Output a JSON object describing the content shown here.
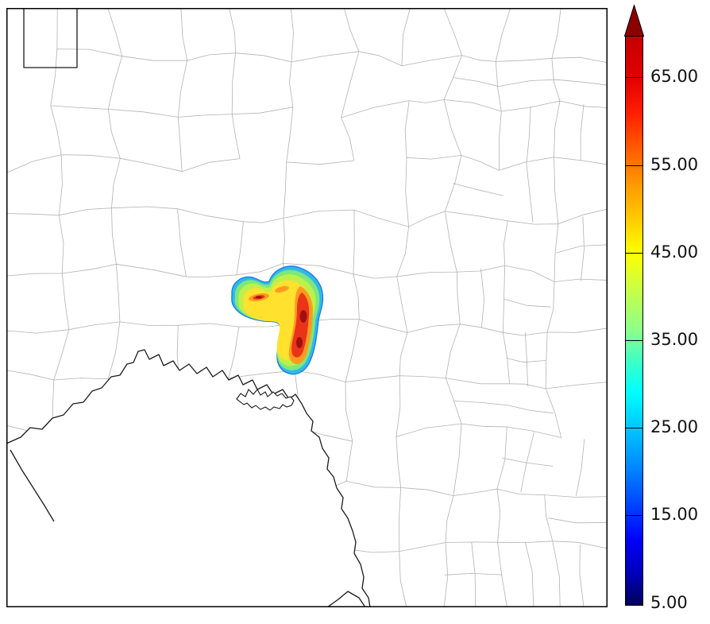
{
  "chart_data": {
    "type": "heatmap",
    "title": "",
    "description": "County-outline map with a single hook-shaped precipitation/reflectivity cell and a vertical jet-style colorbar with an over-range arrow at top",
    "colorbar": {
      "orientation": "vertical",
      "position": "right",
      "range": [
        5,
        65
      ],
      "tick_interval": 10,
      "over_range_arrow": true,
      "arrow_color": "#8c0000",
      "outline_color": "#000000",
      "tick_labels": [
        {
          "value": 65,
          "label": "65.00"
        },
        {
          "value": 55,
          "label": "55.00"
        },
        {
          "value": 45,
          "label": "45.00"
        },
        {
          "value": 35,
          "label": "35.00"
        },
        {
          "value": 25,
          "label": "25.00"
        },
        {
          "value": 15,
          "label": "15.00"
        },
        {
          "value": 5,
          "label": "5.00"
        }
      ],
      "gradient_stops": [
        {
          "v": 5,
          "c": "#000064"
        },
        {
          "v": 8,
          "c": "#0000b4"
        },
        {
          "v": 12,
          "c": "#0000f5"
        },
        {
          "v": 15,
          "c": "#0032ff"
        },
        {
          "v": 20,
          "c": "#0082ff"
        },
        {
          "v": 25,
          "c": "#00c8ff"
        },
        {
          "v": 29,
          "c": "#00ffff"
        },
        {
          "v": 33,
          "c": "#46ffbe"
        },
        {
          "v": 36,
          "c": "#8cff8c"
        },
        {
          "v": 40,
          "c": "#beff50"
        },
        {
          "v": 45,
          "c": "#ffff00"
        },
        {
          "v": 49,
          "c": "#ffc800"
        },
        {
          "v": 53,
          "c": "#ff9600"
        },
        {
          "v": 57,
          "c": "#ff5a00"
        },
        {
          "v": 61,
          "c": "#ff1e00"
        },
        {
          "v": 65,
          "c": "#e10000"
        },
        {
          "v": 70,
          "c": "#c30000"
        }
      ]
    },
    "map": {
      "background": "#ffffff",
      "county_line_color": "#b3b3b3",
      "political_boundary_color": "#1a1a1a",
      "frame_color": "#000000",
      "water_fill": "#ffffff"
    },
    "cell": {
      "shape": "hook",
      "band_colors": [
        "#31b8ea",
        "#7ce87c",
        "#bef04b",
        "#ffe12e",
        "#ff9a1f",
        "#ea3418",
        "#a01010"
      ],
      "edge_color": "#1a7ae0"
    }
  }
}
